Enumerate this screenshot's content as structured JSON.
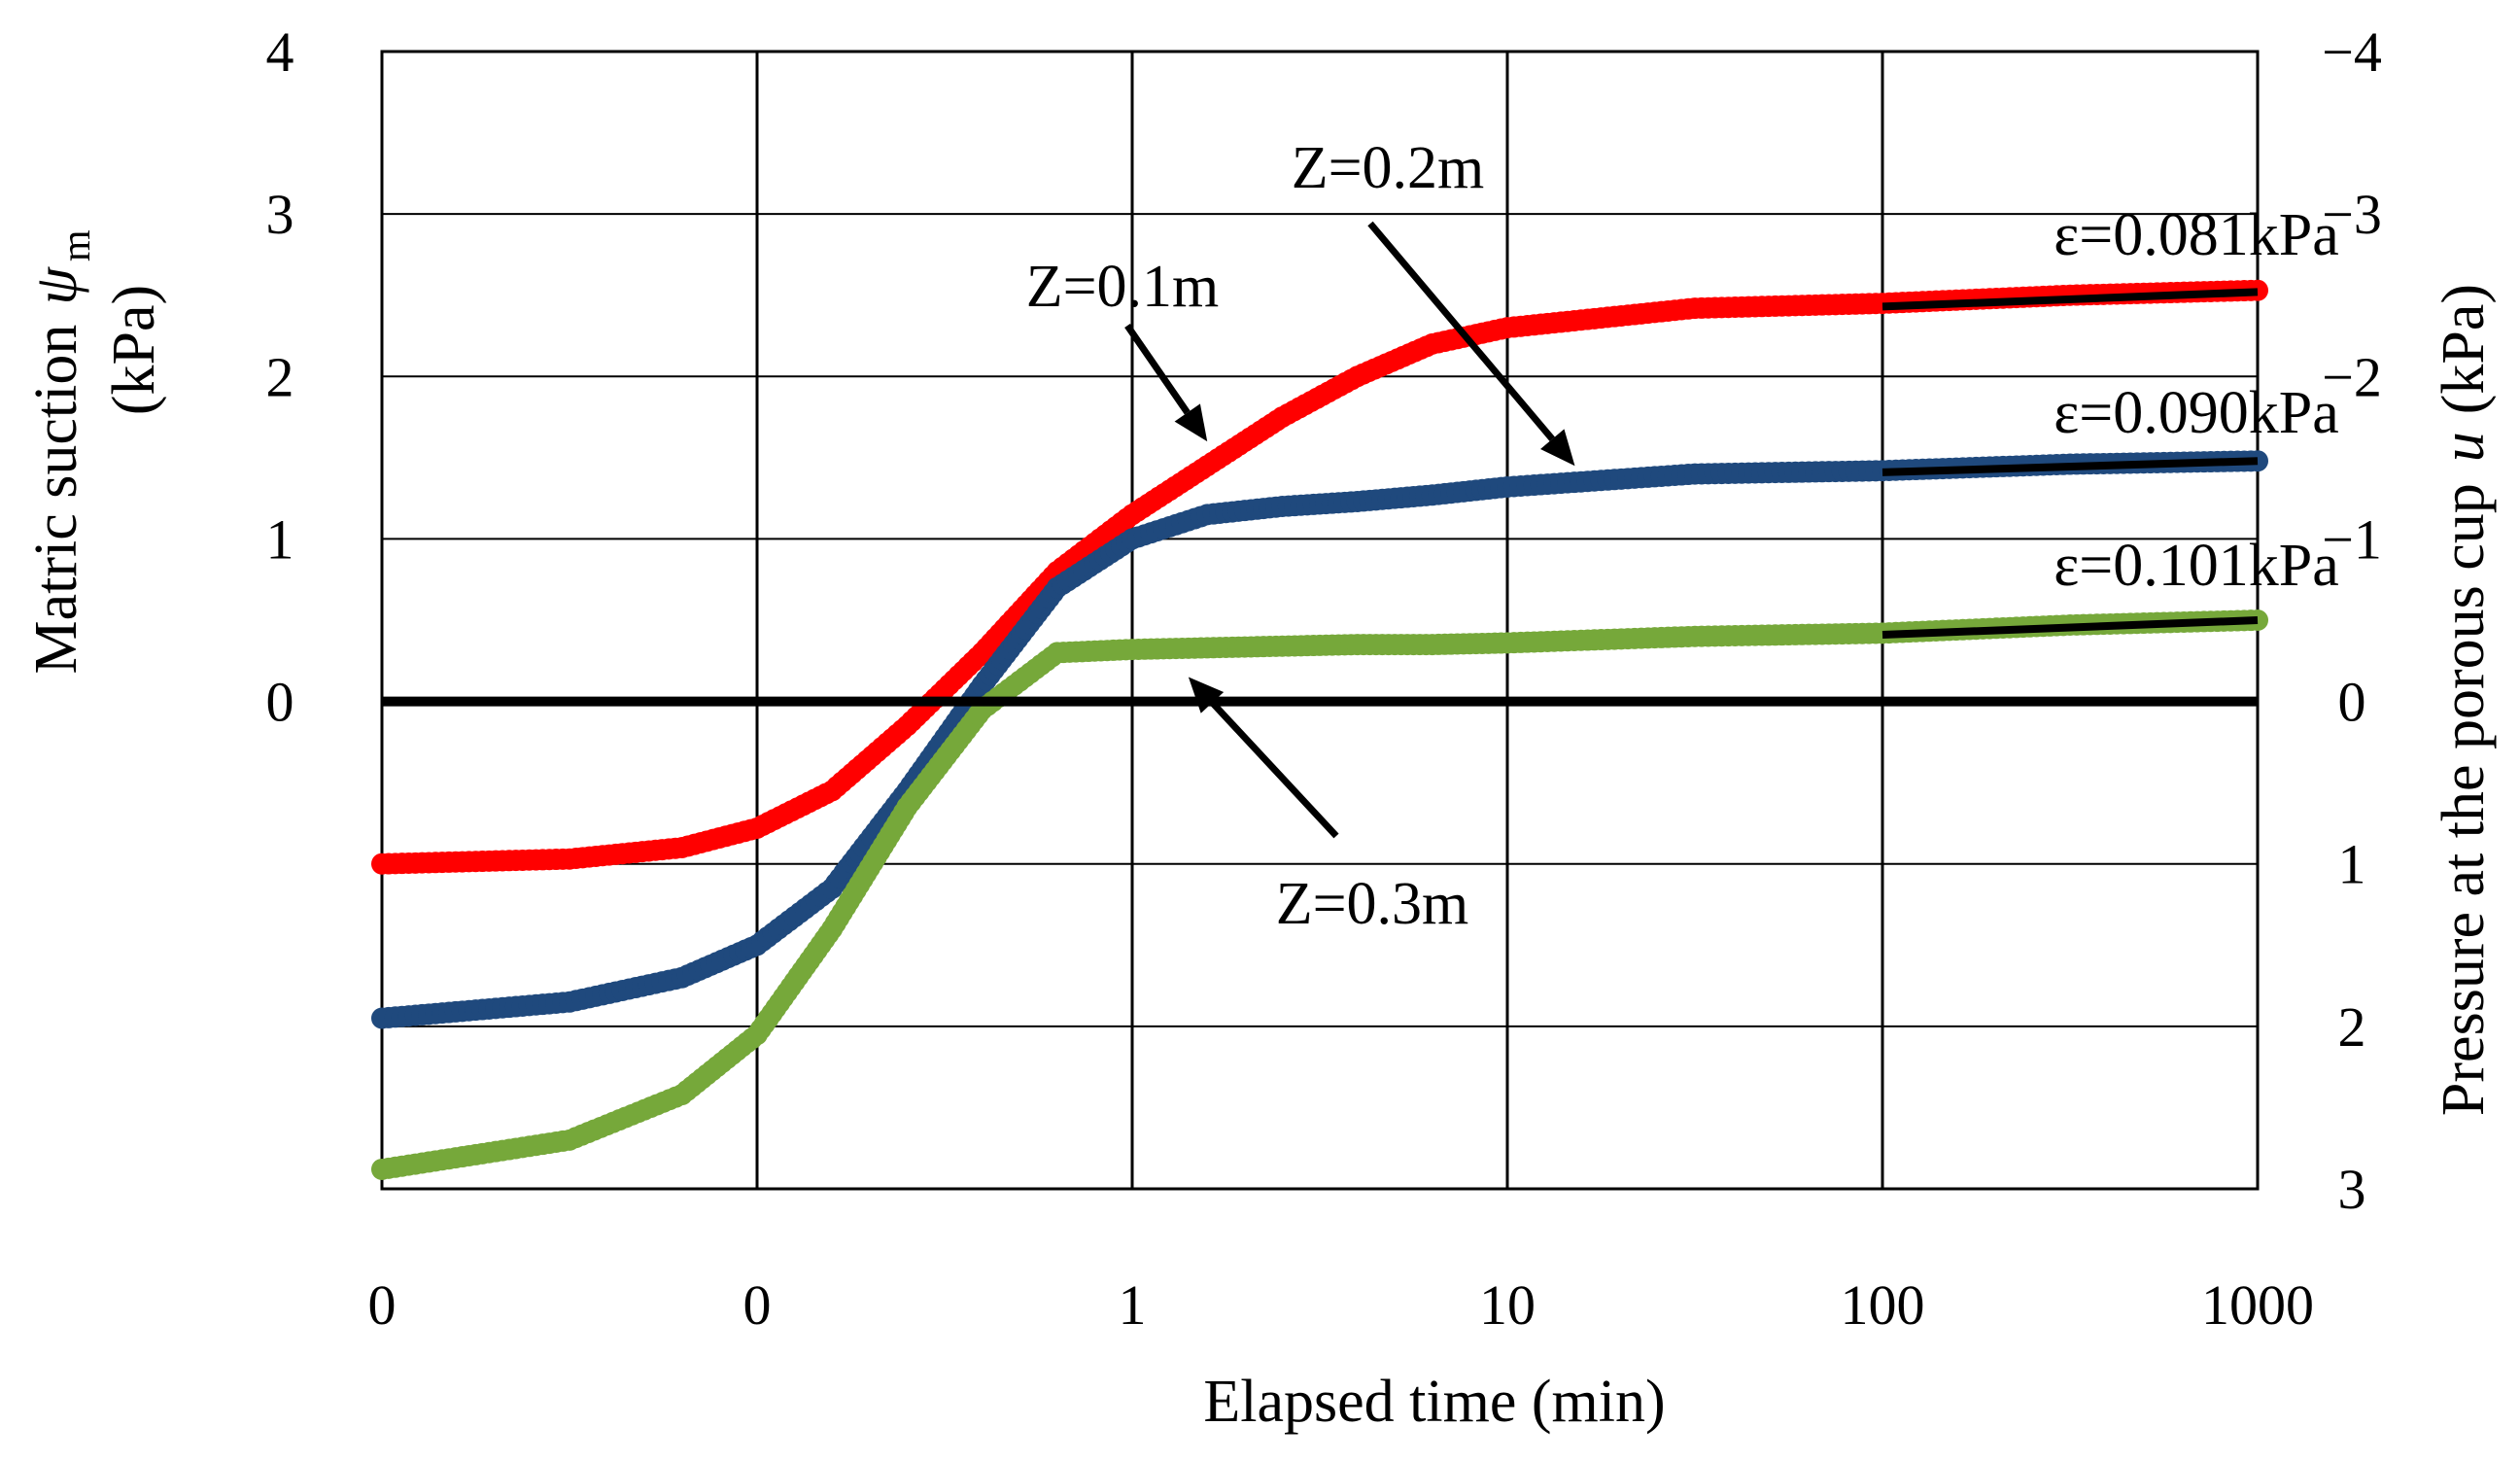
{
  "chart_data": {
    "type": "scatter",
    "title": "",
    "xlabel": "Elapsed time (min)",
    "x_scale": "log",
    "x_ticks": [
      "0",
      "0",
      "1",
      "10",
      "100",
      "1000"
    ],
    "xlim_decades": [
      -2,
      3
    ],
    "ylabel_left": {
      "line1_text": "Matric suction",
      "line1_symbol": "ψ",
      "line1_subscript": "m",
      "line2": "(kPa)"
    },
    "ylabel_right": {
      "text": "Pressure at the porous cup",
      "symbol": "u",
      "unit": "(kPa)"
    },
    "ylim": [
      -3,
      4
    ],
    "y_ticks_left": [
      "4",
      "3",
      "2",
      "1",
      "0"
    ],
    "y_ticks_right": [
      "−4",
      "−3",
      "−2",
      "−1",
      "0",
      "1",
      "2",
      "3"
    ],
    "series": [
      {
        "name": "Z=0.1m",
        "color": "#ff0000",
        "points": [
          [
            -2,
            -1.0
          ],
          [
            -1.5,
            -0.97
          ],
          [
            -1.2,
            -0.9
          ],
          [
            -1.0,
            -0.78
          ],
          [
            -0.8,
            -0.55
          ],
          [
            -0.6,
            -0.15
          ],
          [
            -0.4,
            0.3
          ],
          [
            -0.2,
            0.8
          ],
          [
            0,
            1.15
          ],
          [
            0.2,
            1.45
          ],
          [
            0.4,
            1.75
          ],
          [
            0.6,
            2.0
          ],
          [
            0.8,
            2.2
          ],
          [
            1.0,
            2.3
          ],
          [
            1.5,
            2.42
          ],
          [
            2.0,
            2.45
          ],
          [
            2.5,
            2.5
          ],
          [
            3.0,
            2.53
          ]
        ]
      },
      {
        "name": "Z=0.2m",
        "color": "#1f497d",
        "points": [
          [
            -2,
            -1.95
          ],
          [
            -1.5,
            -1.85
          ],
          [
            -1.2,
            -1.7
          ],
          [
            -1.0,
            -1.5
          ],
          [
            -0.8,
            -1.15
          ],
          [
            -0.6,
            -0.55
          ],
          [
            -0.4,
            0.1
          ],
          [
            -0.2,
            0.7
          ],
          [
            0,
            1.0
          ],
          [
            0.2,
            1.15
          ],
          [
            0.4,
            1.2
          ],
          [
            0.6,
            1.23
          ],
          [
            0.8,
            1.27
          ],
          [
            1.0,
            1.32
          ],
          [
            1.5,
            1.4
          ],
          [
            2.0,
            1.42
          ],
          [
            2.5,
            1.46
          ],
          [
            3.0,
            1.48
          ]
        ]
      },
      {
        "name": "Z=0.3m",
        "color": "#76a83a",
        "points": [
          [
            -2,
            -2.88
          ],
          [
            -1.5,
            -2.7
          ],
          [
            -1.2,
            -2.42
          ],
          [
            -1.0,
            -2.05
          ],
          [
            -0.8,
            -1.4
          ],
          [
            -0.6,
            -0.65
          ],
          [
            -0.4,
            -0.05
          ],
          [
            -0.2,
            0.3
          ],
          [
            0,
            0.32
          ],
          [
            0.2,
            0.33
          ],
          [
            0.4,
            0.34
          ],
          [
            0.6,
            0.35
          ],
          [
            0.8,
            0.35
          ],
          [
            1.0,
            0.36
          ],
          [
            1.5,
            0.4
          ],
          [
            2.0,
            0.42
          ],
          [
            2.5,
            0.47
          ],
          [
            3.0,
            0.5
          ]
        ]
      }
    ],
    "fit_lines": [
      {
        "label": "ε=0.081kPa",
        "series": "Z=0.1m",
        "from": [
          2.0,
          2.43
        ],
        "to": [
          3.0,
          2.52
        ]
      },
      {
        "label": "ε=0.090kPa",
        "series": "Z=0.2m",
        "from": [
          2.0,
          1.41
        ],
        "to": [
          3.0,
          1.48
        ]
      },
      {
        "label": "ε=0.101kPa",
        "series": "Z=0.3m",
        "from": [
          2.0,
          0.41
        ],
        "to": [
          3.0,
          0.5
        ]
      }
    ],
    "annotations": [
      {
        "text": "Z=0.1m",
        "arrow_to": [
          0.2,
          1.6
        ]
      },
      {
        "text": "Z=0.2m",
        "arrow_to": [
          1.18,
          1.45
        ]
      },
      {
        "text": "Z=0.3m",
        "arrow_to": [
          0.15,
          0.15
        ]
      }
    ],
    "zero_line": 0,
    "grid": true
  }
}
